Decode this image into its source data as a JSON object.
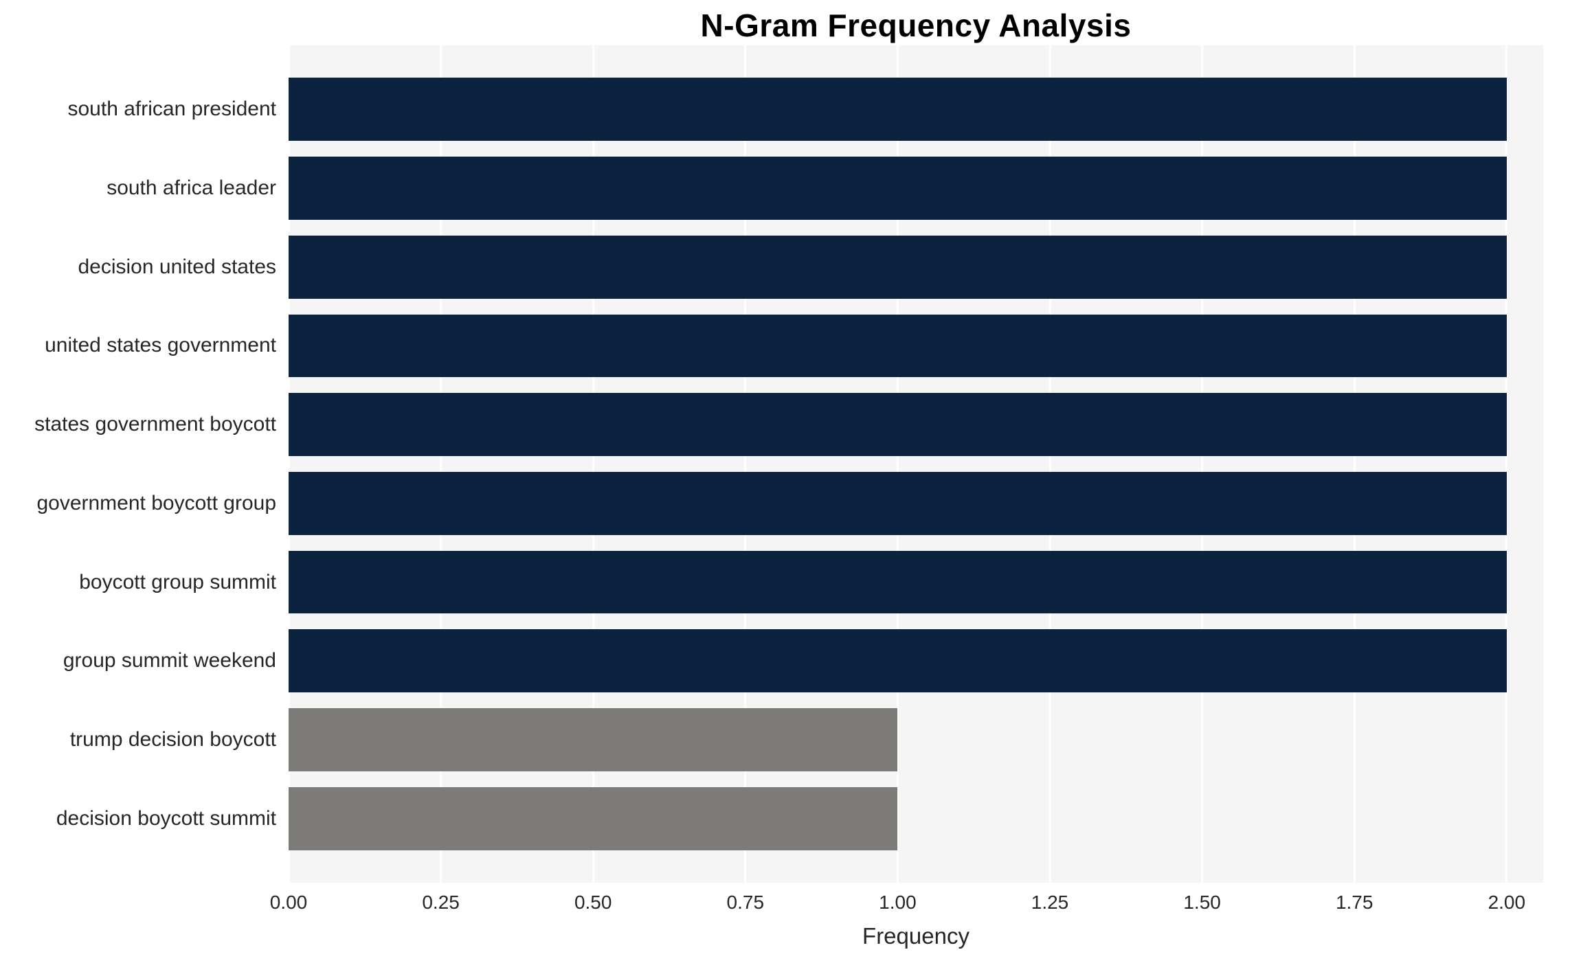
{
  "chart_data": {
    "type": "bar",
    "orientation": "horizontal",
    "title": "N-Gram Frequency Analysis",
    "xlabel": "Frequency",
    "ylabel": "",
    "categories": [
      "south african president",
      "south africa leader",
      "decision united states",
      "united states government",
      "states government boycott",
      "government boycott group",
      "boycott group summit",
      "group summit weekend",
      "trump decision boycott",
      "decision boycott summit"
    ],
    "values": [
      2,
      2,
      2,
      2,
      2,
      2,
      2,
      2,
      1,
      1
    ],
    "bar_colors": [
      "#0c2340",
      "#0c2340",
      "#0c2340",
      "#0c2340",
      "#0c2340",
      "#0c2340",
      "#0c2340",
      "#0c2340",
      "#7d7b77",
      "#7d7b77"
    ],
    "xlim": [
      0,
      2.06
    ],
    "xticks": [
      0,
      0.25,
      0.5,
      0.75,
      1.0,
      1.25,
      1.5,
      1.75,
      2.0
    ],
    "xtick_labels": [
      "0.00",
      "0.25",
      "0.50",
      "0.75",
      "1.00",
      "1.25",
      "1.50",
      "1.75",
      "2.00"
    ],
    "grid": true,
    "grid_color": "#ffffff",
    "plot_bg_color": "#f5f5f5",
    "legend_position": "none",
    "colors": {
      "high_frequency_bar": "#0c2340",
      "low_frequency_bar": "#7d7b77",
      "title_text": "#000000",
      "axis_text": "#262626"
    }
  }
}
